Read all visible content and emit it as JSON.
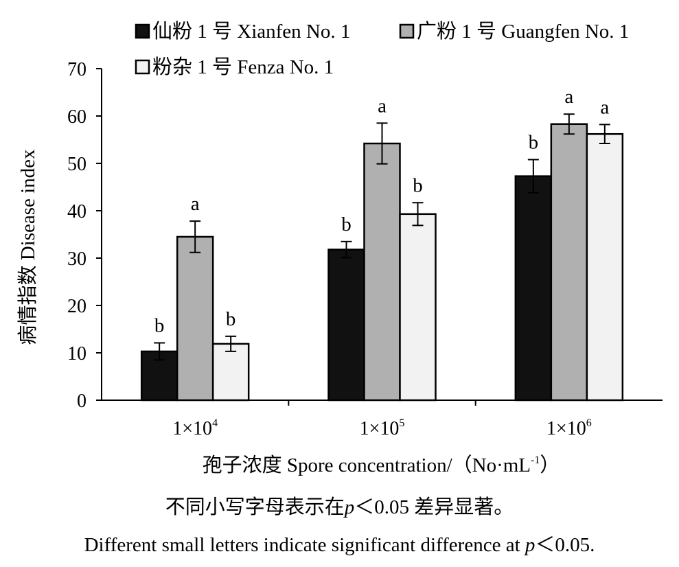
{
  "chart_data": {
    "type": "bar",
    "ylabel": "病情指数 Disease index",
    "xlabel_main": "孢子浓度 Spore concentration/（No·mL",
    "xlabel_sup": "-1",
    "xlabel_end": "）",
    "ylim": [
      0,
      70
    ],
    "yticks": [
      "0",
      "10",
      "20",
      "30",
      "40",
      "50",
      "60",
      "70"
    ],
    "categories": [
      {
        "base": "1×10",
        "exp": "4"
      },
      {
        "base": "1×10",
        "exp": "5"
      },
      {
        "base": "1×10",
        "exp": "6"
      }
    ],
    "series": [
      {
        "name": "仙粉 1 号 Xianfen No. 1",
        "color": "#111111",
        "values": [
          10.3,
          31.8,
          47.3
        ],
        "errors": [
          1.8,
          1.7,
          3.5
        ],
        "letters": [
          "b",
          "b",
          "b"
        ]
      },
      {
        "name": "广粉 1 号 Guangfen No. 1",
        "color": "#b0b0b0",
        "values": [
          34.5,
          54.2,
          58.3
        ],
        "errors": [
          3.3,
          4.3,
          2.1
        ],
        "letters": [
          "a",
          "a",
          "a"
        ]
      },
      {
        "name": "粉杂 1 号 Fenza No. 1",
        "color": "#f2f2f2",
        "values": [
          11.9,
          39.3,
          56.2
        ],
        "errors": [
          1.6,
          2.4,
          2.0
        ],
        "letters": [
          "b",
          "b",
          "a"
        ]
      }
    ],
    "legend": "top"
  },
  "note": {
    "cn_before": "不同小写字母表示在",
    "cn_p": "p",
    "cn_after": "＜0.05 差异显著。",
    "en_before": "Different small letters indicate significant difference at ",
    "en_p": "p",
    "en_after": "＜0.05."
  }
}
